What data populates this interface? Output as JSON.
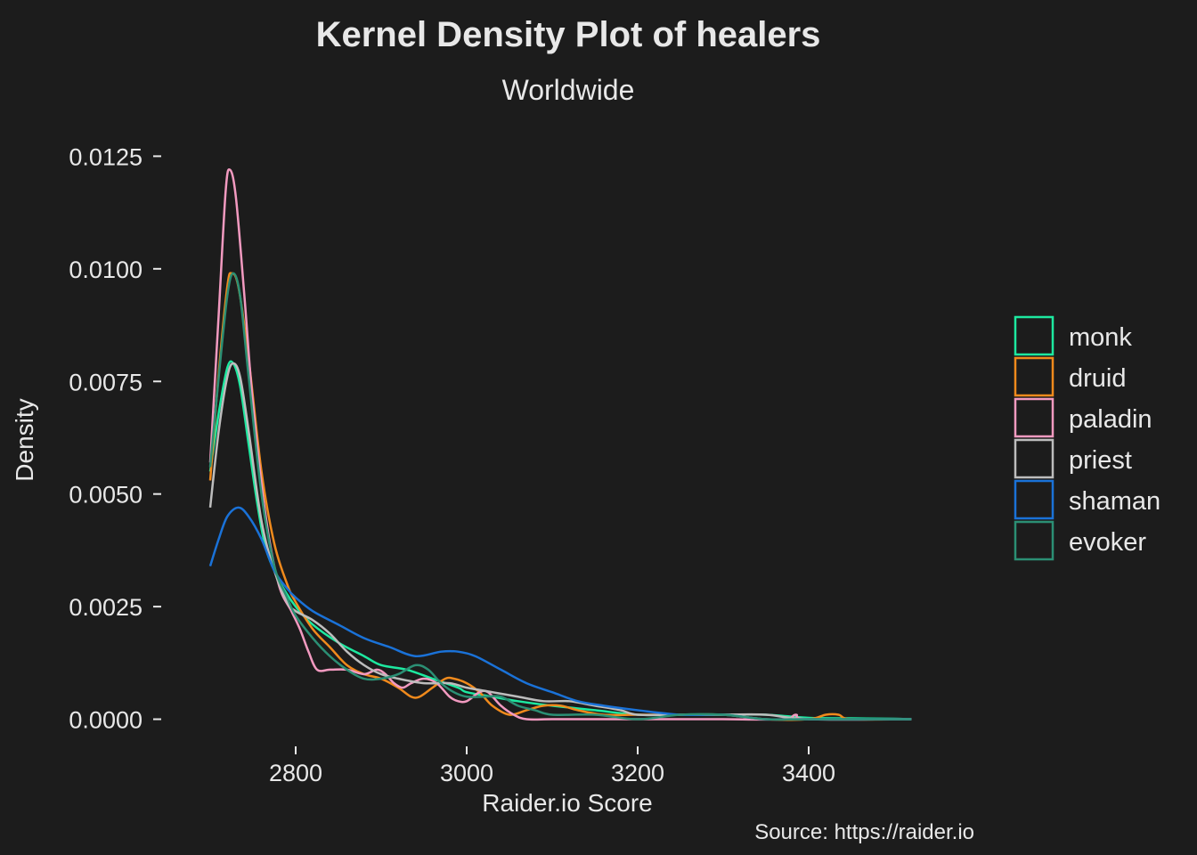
{
  "chart_data": {
    "type": "line",
    "title": "Kernel Density Plot of healers",
    "subtitle": "Worldwide",
    "xlabel": "Raider.io Score",
    "ylabel": "Density",
    "caption": "Source: https://raider.io",
    "xlim": [
      2650,
      3600
    ],
    "ylim": [
      -0.0008,
      0.0132
    ],
    "x_ticks": [
      2800,
      3000,
      3200,
      3400
    ],
    "x_tick_labels": [
      "2800",
      "3000",
      "3200",
      "3400"
    ],
    "y_ticks": [
      0.0,
      0.0025,
      0.005,
      0.0075,
      0.01,
      0.0125
    ],
    "y_tick_labels": [
      "0.0000",
      "0.0025",
      "0.0050",
      "0.0075",
      "0.0100",
      "0.0125"
    ],
    "legend_position": "right",
    "background": "#1c1c1c",
    "series": [
      {
        "name": "monk",
        "color": "#1de9a0",
        "points": [
          [
            2700,
            0.0055
          ],
          [
            2710,
            0.0068
          ],
          [
            2720,
            0.0078
          ],
          [
            2727,
            0.0079
          ],
          [
            2735,
            0.0074
          ],
          [
            2745,
            0.0061
          ],
          [
            2755,
            0.0048
          ],
          [
            2765,
            0.0038
          ],
          [
            2780,
            0.0031
          ],
          [
            2800,
            0.0025
          ],
          [
            2820,
            0.0021
          ],
          [
            2850,
            0.0017
          ],
          [
            2880,
            0.0014
          ],
          [
            2900,
            0.0012
          ],
          [
            2930,
            0.0011
          ],
          [
            2960,
            0.0009
          ],
          [
            2990,
            0.0007
          ],
          [
            3000,
            0.0006
          ],
          [
            3030,
            0.0005
          ],
          [
            3060,
            0.0004
          ],
          [
            3100,
            0.0003
          ],
          [
            3150,
            0.0002
          ],
          [
            3200,
            0.0001
          ],
          [
            3250,
            0.0001
          ],
          [
            3300,
            0.0001
          ],
          [
            3350,
            0.0001
          ],
          [
            3400,
            3e-05
          ],
          [
            3450,
            2e-05
          ],
          [
            3500,
            1e-05
          ],
          [
            3520,
            0.0
          ]
        ]
      },
      {
        "name": "druid",
        "color": "#f08a1c",
        "points": [
          [
            2700,
            0.0053
          ],
          [
            2710,
            0.0077
          ],
          [
            2720,
            0.0096
          ],
          [
            2725,
            0.0099
          ],
          [
            2733,
            0.0096
          ],
          [
            2745,
            0.008
          ],
          [
            2760,
            0.0055
          ],
          [
            2775,
            0.0039
          ],
          [
            2790,
            0.003
          ],
          [
            2800,
            0.0026
          ],
          [
            2820,
            0.002
          ],
          [
            2840,
            0.0016
          ],
          [
            2860,
            0.0012
          ],
          [
            2880,
            0.001
          ],
          [
            2900,
            0.0009
          ],
          [
            2920,
            0.0007
          ],
          [
            2935,
            0.0005
          ],
          [
            2945,
            0.0005
          ],
          [
            2960,
            0.0007
          ],
          [
            2975,
            0.0009
          ],
          [
            2985,
            0.0009
          ],
          [
            3000,
            0.0008
          ],
          [
            3015,
            0.0006
          ],
          [
            3030,
            0.0003
          ],
          [
            3050,
            0.0001
          ],
          [
            3070,
            0.0002
          ],
          [
            3090,
            0.0003
          ],
          [
            3110,
            0.0003
          ],
          [
            3130,
            0.0002
          ],
          [
            3160,
            0.0001
          ],
          [
            3200,
            0.0001
          ],
          [
            3250,
            0.0001
          ],
          [
            3300,
            0.0001
          ],
          [
            3350,
            0.0
          ],
          [
            3400,
            0.0
          ],
          [
            3420,
            0.0001
          ],
          [
            3435,
            0.0001
          ],
          [
            3450,
            0.0
          ],
          [
            3520,
            0.0
          ]
        ]
      },
      {
        "name": "paladin",
        "color": "#f29ac0",
        "points": [
          [
            2700,
            0.0057
          ],
          [
            2710,
            0.009
          ],
          [
            2718,
            0.0117
          ],
          [
            2723,
            0.0122
          ],
          [
            2730,
            0.0116
          ],
          [
            2740,
            0.0094
          ],
          [
            2750,
            0.007
          ],
          [
            2765,
            0.0045
          ],
          [
            2780,
            0.003
          ],
          [
            2795,
            0.0024
          ],
          [
            2805,
            0.002
          ],
          [
            2815,
            0.0015
          ],
          [
            2825,
            0.0011
          ],
          [
            2840,
            0.0011
          ],
          [
            2860,
            0.0011
          ],
          [
            2880,
            0.001
          ],
          [
            2895,
            0.0011
          ],
          [
            2905,
            0.001
          ],
          [
            2915,
            0.0008
          ],
          [
            2925,
            0.0007
          ],
          [
            2935,
            0.0008
          ],
          [
            2950,
            0.0009
          ],
          [
            2965,
            0.0008
          ],
          [
            2980,
            0.0005
          ],
          [
            2990,
            0.0004
          ],
          [
            3000,
            0.0004
          ],
          [
            3015,
            0.0006
          ],
          [
            3025,
            0.0006
          ],
          [
            3040,
            0.0003
          ],
          [
            3055,
            0.0001
          ],
          [
            3070,
            0.0
          ],
          [
            3100,
            0.0
          ],
          [
            3150,
            0.0
          ],
          [
            3200,
            0.0
          ],
          [
            3250,
            0.0
          ],
          [
            3300,
            0.0
          ],
          [
            3370,
            0.0
          ],
          [
            3385,
            0.0001
          ],
          [
            3400,
            0.0
          ],
          [
            3520,
            0.0
          ]
        ]
      },
      {
        "name": "priest",
        "color": "#bdbdbd",
        "points": [
          [
            2700,
            0.0047
          ],
          [
            2710,
            0.0064
          ],
          [
            2720,
            0.0076
          ],
          [
            2727,
            0.0079
          ],
          [
            2735,
            0.0076
          ],
          [
            2745,
            0.0064
          ],
          [
            2760,
            0.0044
          ],
          [
            2775,
            0.0033
          ],
          [
            2790,
            0.0026
          ],
          [
            2800,
            0.0024
          ],
          [
            2820,
            0.0022
          ],
          [
            2840,
            0.0019
          ],
          [
            2860,
            0.0015
          ],
          [
            2880,
            0.0012
          ],
          [
            2900,
            0.001
          ],
          [
            2920,
            0.0009
          ],
          [
            2950,
            0.0008
          ],
          [
            2980,
            0.0008
          ],
          [
            3000,
            0.0007
          ],
          [
            3030,
            0.0006
          ],
          [
            3060,
            0.0005
          ],
          [
            3090,
            0.0004
          ],
          [
            3120,
            0.0004
          ],
          [
            3150,
            0.0003
          ],
          [
            3180,
            0.0002
          ],
          [
            3200,
            0.0001
          ],
          [
            3250,
            0.0001
          ],
          [
            3300,
            0.0001
          ],
          [
            3350,
            0.0001
          ],
          [
            3400,
            0.0
          ],
          [
            3520,
            0.0
          ]
        ]
      },
      {
        "name": "shaman",
        "color": "#1a72d8",
        "points": [
          [
            2700,
            0.0034
          ],
          [
            2710,
            0.004
          ],
          [
            2720,
            0.0045
          ],
          [
            2733,
            0.0047
          ],
          [
            2745,
            0.0045
          ],
          [
            2760,
            0.004
          ],
          [
            2775,
            0.0033
          ],
          [
            2790,
            0.0029
          ],
          [
            2800,
            0.0027
          ],
          [
            2820,
            0.0024
          ],
          [
            2850,
            0.0021
          ],
          [
            2880,
            0.0018
          ],
          [
            2910,
            0.0016
          ],
          [
            2940,
            0.0014
          ],
          [
            2970,
            0.0015
          ],
          [
            2990,
            0.0015
          ],
          [
            3010,
            0.0014
          ],
          [
            3040,
            0.0011
          ],
          [
            3070,
            0.0008
          ],
          [
            3100,
            0.0006
          ],
          [
            3130,
            0.0004
          ],
          [
            3160,
            0.0003
          ],
          [
            3200,
            0.0002
          ],
          [
            3250,
            0.0001
          ],
          [
            3300,
            0.0001
          ],
          [
            3350,
            0.0
          ],
          [
            3400,
            0.0
          ],
          [
            3520,
            0.0
          ]
        ]
      },
      {
        "name": "evoker",
        "color": "#2b8f74",
        "points": [
          [
            2700,
            0.0056
          ],
          [
            2710,
            0.0076
          ],
          [
            2720,
            0.0094
          ],
          [
            2727,
            0.0099
          ],
          [
            2735,
            0.0094
          ],
          [
            2745,
            0.0076
          ],
          [
            2760,
            0.005
          ],
          [
            2775,
            0.0034
          ],
          [
            2790,
            0.0027
          ],
          [
            2800,
            0.0023
          ],
          [
            2820,
            0.0018
          ],
          [
            2840,
            0.0014
          ],
          [
            2860,
            0.0011
          ],
          [
            2880,
            0.0009
          ],
          [
            2900,
            0.0009
          ],
          [
            2920,
            0.001
          ],
          [
            2940,
            0.0012
          ],
          [
            2955,
            0.0011
          ],
          [
            2970,
            0.0008
          ],
          [
            2985,
            0.0006
          ],
          [
            3000,
            0.0005
          ],
          [
            3020,
            0.0005
          ],
          [
            3040,
            0.0005
          ],
          [
            3060,
            0.0003
          ],
          [
            3080,
            0.0002
          ],
          [
            3100,
            0.0001
          ],
          [
            3150,
            0.0001
          ],
          [
            3200,
            0.0
          ],
          [
            3250,
            0.0001
          ],
          [
            3300,
            0.0001
          ],
          [
            3350,
            0.0
          ],
          [
            3400,
            0.0
          ],
          [
            3520,
            0.0
          ]
        ]
      }
    ]
  }
}
